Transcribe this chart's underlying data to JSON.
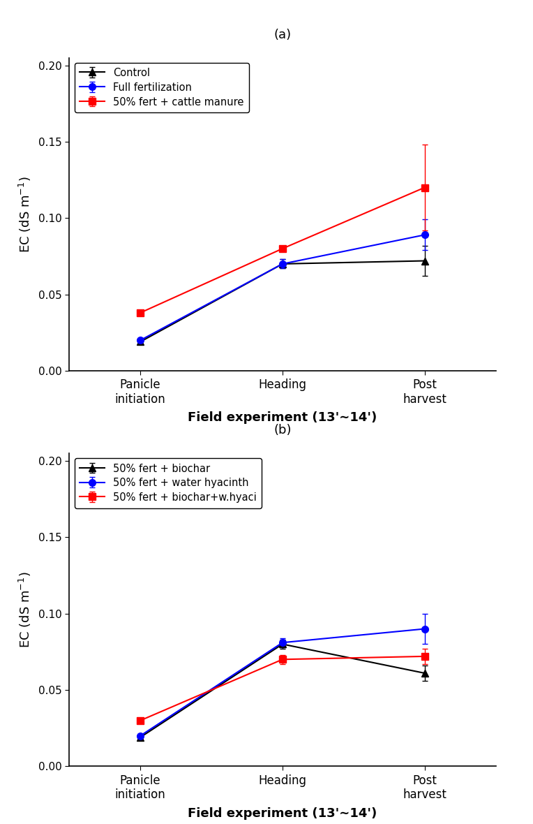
{
  "panel_a": {
    "subtitle": "(a)",
    "series": [
      {
        "label": "Control",
        "color": "#000000",
        "marker": "^",
        "values": [
          0.019,
          0.07,
          0.072
        ],
        "errors": [
          0.001,
          0.003,
          0.01
        ]
      },
      {
        "label": "Full fertilization",
        "color": "#0000FF",
        "marker": "o",
        "values": [
          0.02,
          0.07,
          0.089
        ],
        "errors": [
          0.001,
          0.003,
          0.01
        ]
      },
      {
        "label": "50% fert + cattle manure",
        "color": "#FF0000",
        "marker": "s",
        "values": [
          0.038,
          0.08,
          0.12
        ],
        "errors": [
          0.001,
          0.002,
          0.028
        ]
      }
    ],
    "xlabel": "Field experiment (13'∼14')",
    "ylabel": "EC (dS m$^{-1}$)",
    "xtick_labels": [
      "Panicle\ninitiation",
      "Heading",
      "Post\nharvest"
    ],
    "ylim": [
      0.0,
      0.205
    ],
    "yticks": [
      0.0,
      0.05,
      0.1,
      0.15,
      0.2
    ]
  },
  "panel_b": {
    "subtitle": "(b)",
    "series": [
      {
        "label": "50% fert + biochar",
        "color": "#000000",
        "marker": "^",
        "values": [
          0.019,
          0.08,
          0.061
        ],
        "errors": [
          0.001,
          0.003,
          0.005
        ]
      },
      {
        "label": "50% fert + water hyacinth",
        "color": "#0000FF",
        "marker": "o",
        "values": [
          0.02,
          0.081,
          0.09
        ],
        "errors": [
          0.001,
          0.003,
          0.01
        ]
      },
      {
        "label": "50% fert + biochar+w.hyaci",
        "color": "#FF0000",
        "marker": "s",
        "values": [
          0.03,
          0.07,
          0.072
        ],
        "errors": [
          0.001,
          0.003,
          0.005
        ]
      }
    ],
    "xlabel": "Field experiment (13'∼14')",
    "ylabel": "EC (dS m$^{-1}$)",
    "xtick_labels": [
      "Panicle\ninitiation",
      "Heading",
      "Post\nharvest"
    ],
    "ylim": [
      0.0,
      0.205
    ],
    "yticks": [
      0.0,
      0.05,
      0.1,
      0.15,
      0.2
    ]
  },
  "figsize": [
    7.64,
    11.8
  ],
  "dpi": 100
}
